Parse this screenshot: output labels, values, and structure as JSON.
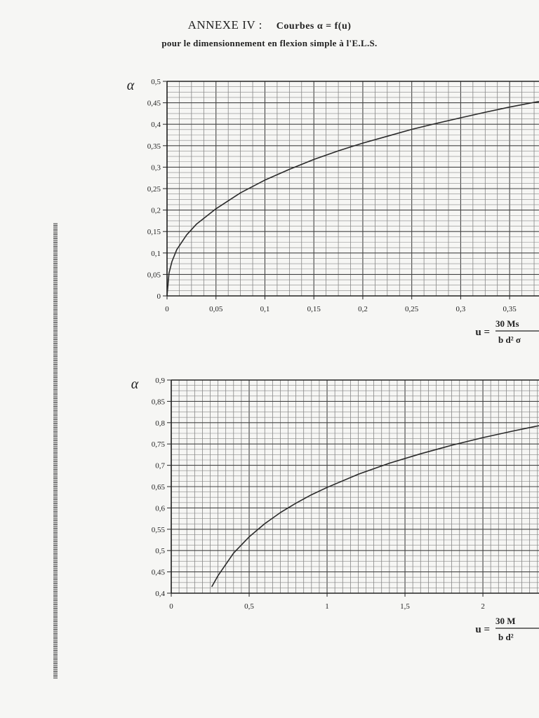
{
  "title": {
    "main": "ANNEXE IV :",
    "formula": "Courbes α = f(u)",
    "subtitle": "pour le dimensionnement en flexion simple à l'E.L.S."
  },
  "chart_data": [
    {
      "type": "line",
      "ylabel": "α",
      "xlabel": "u =",
      "xlabel_numerator": "30 Ms",
      "xlabel_denominator": "b d² σ",
      "xlim": [
        0,
        0.38
      ],
      "ylim": [
        0,
        0.5
      ],
      "xticks": [
        "0",
        "0,05",
        "0,1",
        "0,15",
        "0,2",
        "0,25",
        "0,3",
        "0,35"
      ],
      "yticks": [
        "0",
        "0,05",
        "0,1",
        "0,15",
        "0,2",
        "0,25",
        "0,3",
        "0,35",
        "0,4",
        "0,45",
        "0,5"
      ],
      "grid": true,
      "series": [
        {
          "x": [
            0,
            0.002,
            0.005,
            0.01,
            0.02,
            0.03,
            0.05,
            0.075,
            0.1,
            0.125,
            0.15,
            0.175,
            0.2,
            0.225,
            0.25,
            0.275,
            0.3,
            0.325,
            0.35,
            0.375,
            0.38
          ],
          "y": [
            0,
            0.053,
            0.08,
            0.108,
            0.142,
            0.167,
            0.203,
            0.24,
            0.27,
            0.295,
            0.318,
            0.338,
            0.356,
            0.372,
            0.388,
            0.402,
            0.415,
            0.428,
            0.44,
            0.451,
            0.453
          ]
        }
      ]
    },
    {
      "type": "line",
      "ylabel": "α",
      "xlabel": "u =",
      "xlabel_numerator": "30 M",
      "xlabel_denominator": "b d²",
      "xlim": [
        0,
        2.36
      ],
      "ylim": [
        0.4,
        0.9
      ],
      "xticks": [
        "0",
        "0,5",
        "1",
        "1,5",
        "2"
      ],
      "yticks": [
        "0,4",
        "0,45",
        "0,5",
        "0,55",
        "0,6",
        "0,65",
        "0,7",
        "0,75",
        "0,8",
        "0,85",
        "0,9"
      ],
      "grid": true,
      "series": [
        {
          "x": [
            0.26,
            0.3,
            0.4,
            0.5,
            0.6,
            0.7,
            0.8,
            0.9,
            1.0,
            1.2,
            1.4,
            1.6,
            1.8,
            2.0,
            2.2,
            2.36
          ],
          "y": [
            0.415,
            0.441,
            0.494,
            0.532,
            0.563,
            0.589,
            0.611,
            0.631,
            0.648,
            0.679,
            0.705,
            0.727,
            0.747,
            0.765,
            0.781,
            0.793
          ]
        }
      ]
    }
  ]
}
